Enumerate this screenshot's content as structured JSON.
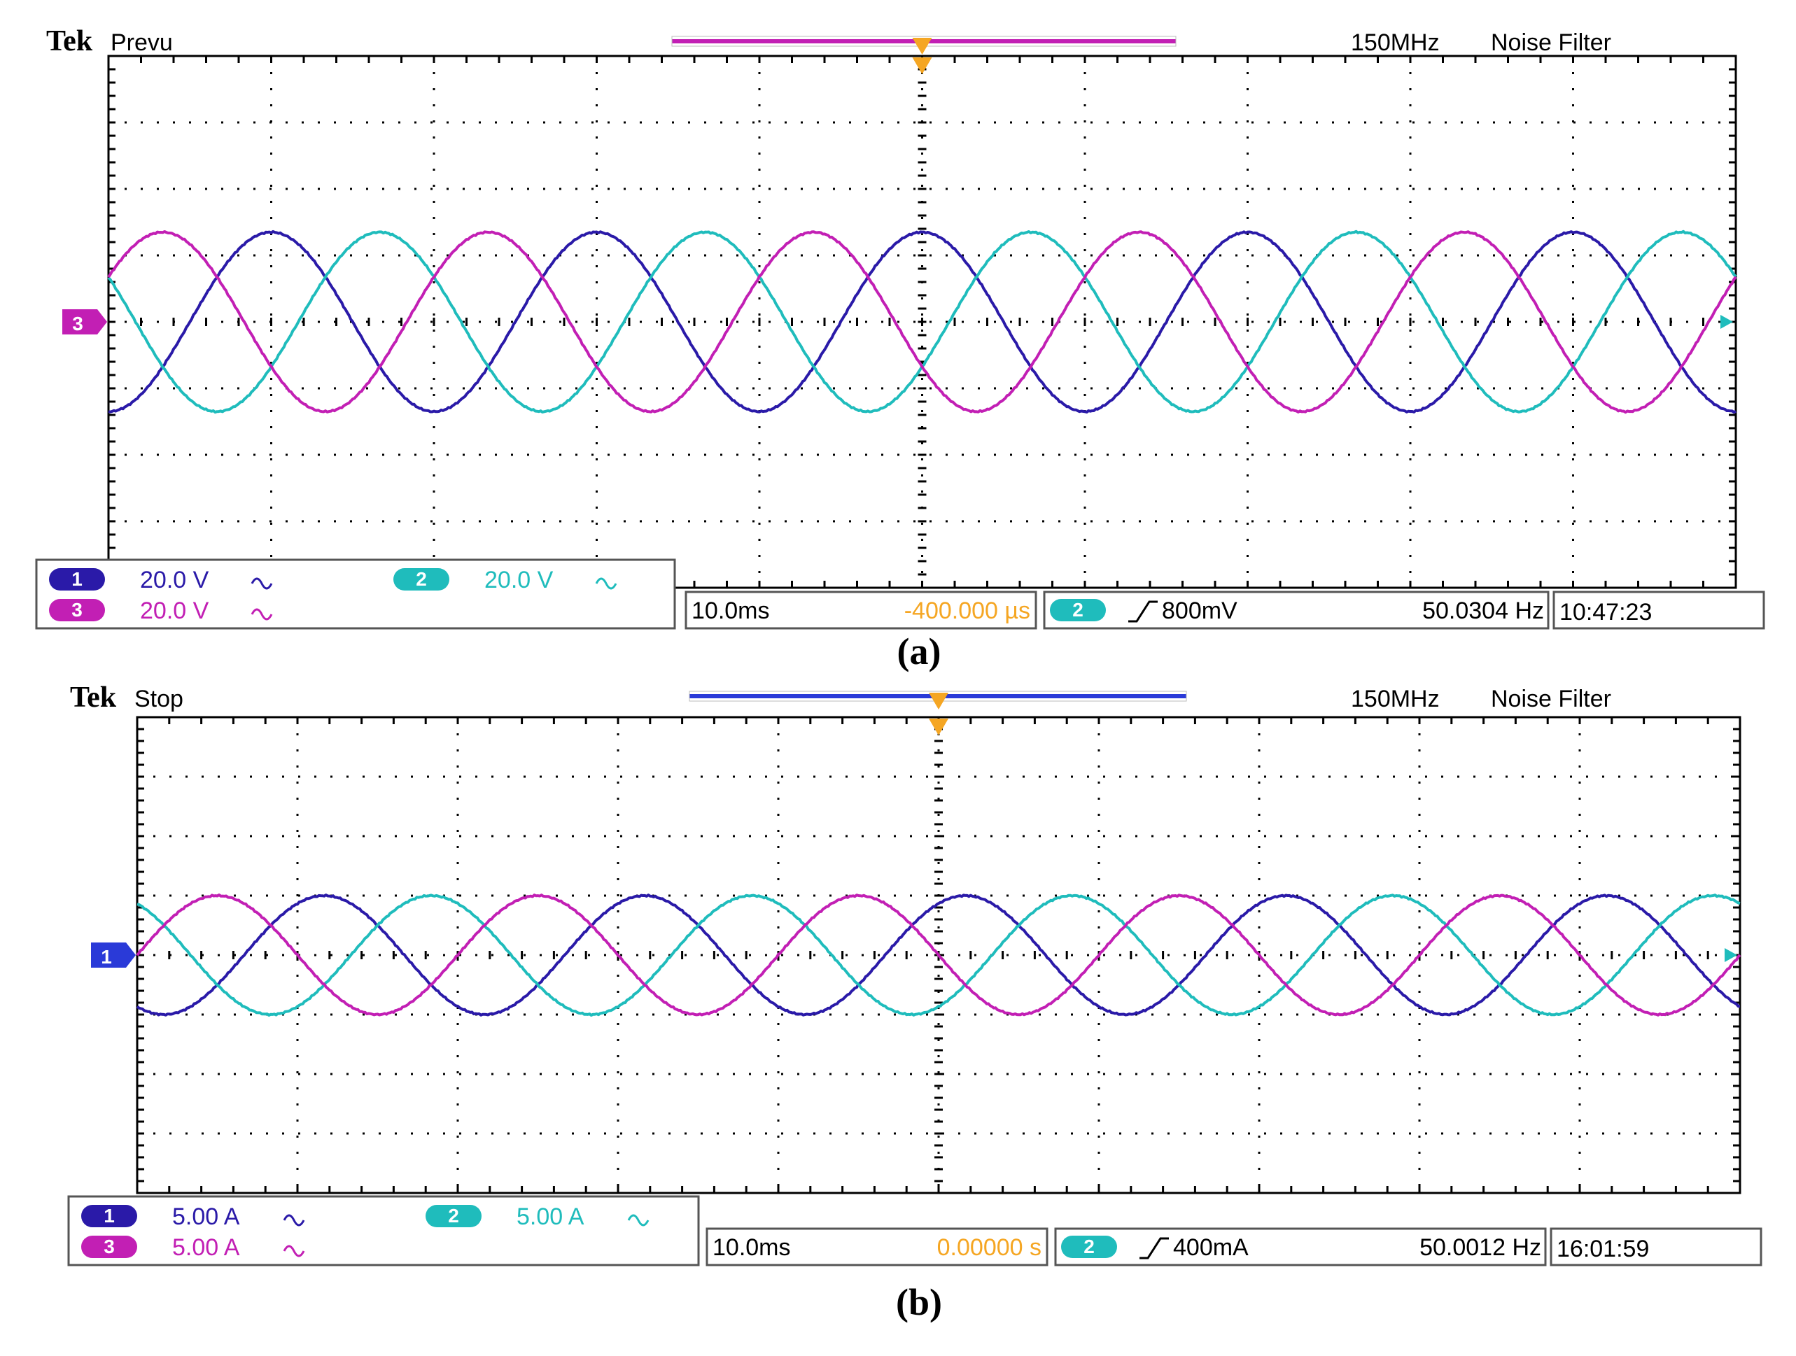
{
  "colors": {
    "ch1": "#2a1aa8",
    "ch2": "#1fbcbc",
    "ch3": "#c21fb4",
    "trigger": "#f5a623",
    "timebase_offset": "#f5a623",
    "frame": "#555555",
    "grid": "#000000"
  },
  "panels": [
    {
      "id": "a",
      "caption": "(a)",
      "brand": "Tek",
      "status": "Prevu",
      "bandwidth": "150MHz",
      "filter": "Noise Filter",
      "record_bar_color": "#c21fb4",
      "ground_marker": {
        "label": "3",
        "color": "#c21fb4"
      },
      "channels": [
        {
          "badge": "1",
          "scale": "20.0 V",
          "coupling_icon": "ac-wave-icon",
          "color": "#2a1aa8"
        },
        {
          "badge": "2",
          "scale": "20.0 V",
          "coupling_icon": "ac-wave-icon",
          "color": "#1fbcbc"
        },
        {
          "badge": "3",
          "scale": "20.0 V",
          "coupling_icon": "ac-wave-icon",
          "color": "#c21fb4"
        }
      ],
      "timebase": "10.0ms",
      "offset": "-400.000 µs",
      "trigger_source": "2",
      "trigger_level": "800mV",
      "frequency": "50.0304 Hz",
      "clock": "10:47:23",
      "chart_data": {
        "type": "line",
        "x_divisions": 10,
        "y_divisions": 8,
        "xlabel": "",
        "ylabel": "",
        "time_per_div_ms": 10,
        "frequency_hz": 50,
        "series": [
          {
            "name": "1",
            "amplitude_div": 1.35,
            "phase_deg": -90,
            "offset_div": 0
          },
          {
            "name": "2",
            "amplitude_div": 1.35,
            "phase_deg": 150,
            "offset_div": 0
          },
          {
            "name": "3",
            "amplitude_div": 1.35,
            "phase_deg": 30,
            "offset_div": 0
          }
        ]
      }
    },
    {
      "id": "b",
      "caption": "(b)",
      "brand": "Tek",
      "status": "Stop",
      "bandwidth": "150MHz",
      "filter": "Noise Filter",
      "record_bar_color": "#2a3ad8",
      "ground_marker": {
        "label": "1",
        "color": "#2a3ad8"
      },
      "channels": [
        {
          "badge": "1",
          "scale": "5.00 A",
          "coupling_icon": "ac-wave-icon",
          "color": "#2a1aa8"
        },
        {
          "badge": "2",
          "scale": "5.00 A",
          "coupling_icon": "ac-wave-icon",
          "color": "#1fbcbc"
        },
        {
          "badge": "3",
          "scale": "5.00 A",
          "coupling_icon": "ac-wave-icon",
          "color": "#c21fb4"
        }
      ],
      "timebase": "10.0ms",
      "offset": "0.00000 s",
      "trigger_source": "2",
      "trigger_level": "400mA",
      "frequency": "50.0012 Hz",
      "clock": "16:01:59",
      "chart_data": {
        "type": "line",
        "x_divisions": 10,
        "y_divisions": 8,
        "xlabel": "",
        "ylabel": "",
        "time_per_div_ms": 10,
        "frequency_hz": 50,
        "series": [
          {
            "name": "1",
            "amplitude_div": 1.0,
            "phase_deg": -120,
            "offset_div": 0
          },
          {
            "name": "2",
            "amplitude_div": 1.0,
            "phase_deg": 120,
            "offset_div": 0
          },
          {
            "name": "3",
            "amplitude_div": 1.0,
            "phase_deg": 0,
            "offset_div": 0
          }
        ]
      }
    }
  ]
}
